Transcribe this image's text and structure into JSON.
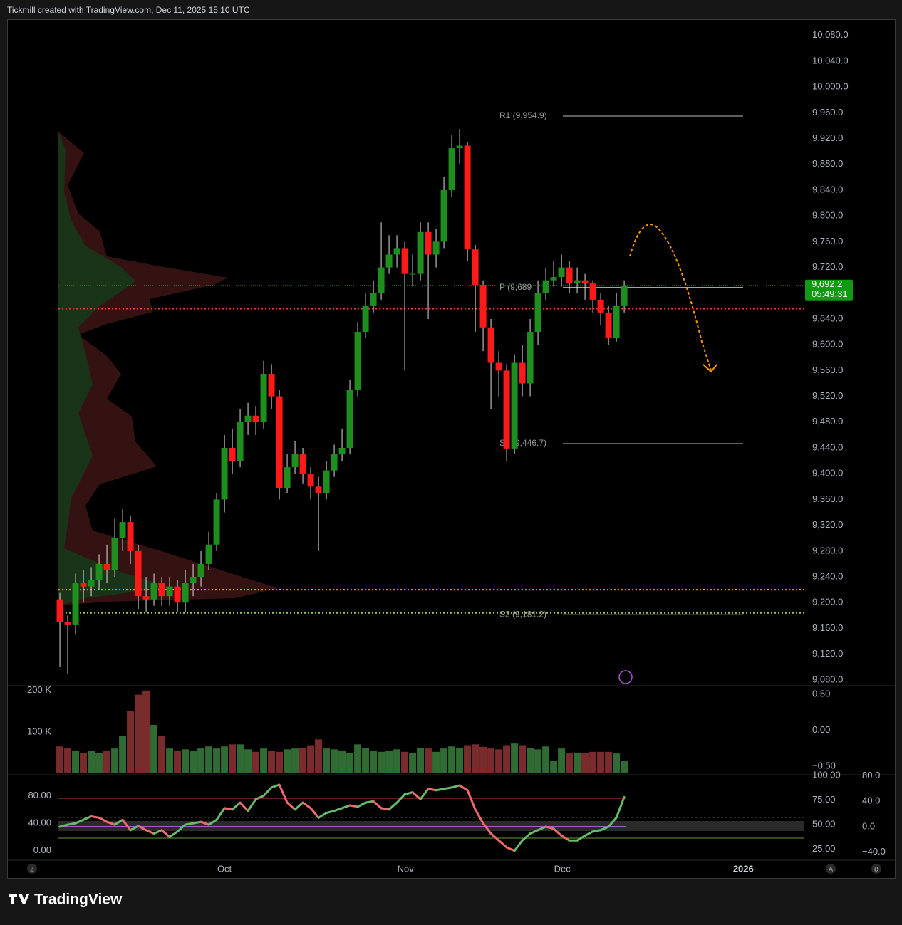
{
  "header": {
    "title": "Tickmill created with TradingView.com, Dec 11, 2025 15:10 UTC"
  },
  "footer": {
    "brand": "TradingView"
  },
  "chart_data": {
    "type": "candlestick",
    "up_color": "#1e8f1e",
    "down_color": "#ff1a1a",
    "xlim": [
      -0.55,
      94.9
    ],
    "xticks": [
      {
        "value": 21,
        "label": "Oct"
      },
      {
        "value": 44.1,
        "label": "Nov"
      },
      {
        "value": 64.1,
        "label": "Dec"
      },
      {
        "value": 87.2,
        "label": "2026"
      }
    ],
    "ylim": [
      9071,
      10104
    ],
    "yticks": [
      {
        "value": 10080,
        "label": "10,080.0"
      },
      {
        "value": 10040,
        "label": "10,040.0"
      },
      {
        "value": 10000,
        "label": "10,000.0"
      },
      {
        "value": 9960,
        "label": "9,960.0"
      },
      {
        "value": 9920,
        "label": "9,920.0"
      },
      {
        "value": 9880,
        "label": "9,880.0"
      },
      {
        "value": 9840,
        "label": "9,840.0"
      },
      {
        "value": 9800,
        "label": "9,800.0"
      },
      {
        "value": 9760,
        "label": "9,760.0"
      },
      {
        "value": 9720,
        "label": "9,720.0"
      },
      {
        "value": 9640,
        "label": "9,640.0"
      },
      {
        "value": 9600,
        "label": "9,600.0"
      },
      {
        "value": 9560,
        "label": "9,560.0"
      },
      {
        "value": 9520,
        "label": "9,520.0"
      },
      {
        "value": 9480,
        "label": "9,480.0"
      },
      {
        "value": 9440,
        "label": "9,440.0"
      },
      {
        "value": 9400,
        "label": "9,400.0"
      },
      {
        "value": 9360,
        "label": "9,360.0"
      },
      {
        "value": 9320,
        "label": "9,320.0"
      },
      {
        "value": 9280,
        "label": "9,280.0"
      },
      {
        "value": 9240,
        "label": "9,240.0"
      },
      {
        "value": 9200,
        "label": "9,200.0"
      },
      {
        "value": 9160,
        "label": "9,160.0"
      },
      {
        "value": 9120,
        "label": "9,120.0"
      },
      {
        "value": 9080,
        "label": "9,080.0"
      }
    ],
    "open": [
      9205,
      9170,
      9165,
      9230,
      9225,
      9235,
      9260,
      9250,
      9300,
      9325,
      9280,
      9210,
      9205,
      9230,
      9210,
      9225,
      9200,
      9230,
      9240,
      9260,
      9290,
      9360,
      9440,
      9420,
      9480,
      9490,
      9480,
      9555,
      9520,
      9378,
      9410,
      9430,
      9400,
      9380,
      9370,
      9405,
      9430,
      9440,
      9530,
      9620,
      9660,
      9680,
      9720,
      9740,
      9750,
      9710,
      9710,
      9775,
      9740,
      9760,
      9840,
      9905,
      9909,
      9748,
      9693,
      9627,
      9572,
      9560,
      9439,
      9572,
      9540,
      9620,
      9680,
      9700,
      9705,
      9720,
      9695,
      9700,
      9695,
      9670,
      9650,
      9610,
      9660
    ],
    "high": [
      9215,
      9180,
      9245,
      9250,
      9255,
      9275,
      9290,
      9330,
      9345,
      9335,
      9290,
      9240,
      9245,
      9240,
      9240,
      9235,
      9250,
      9260,
      9280,
      9310,
      9370,
      9460,
      9470,
      9500,
      9510,
      9505,
      9575,
      9570,
      9530,
      9430,
      9450,
      9440,
      9410,
      9395,
      9420,
      9445,
      9470,
      9545,
      9635,
      9680,
      9700,
      9790,
      9770,
      9770,
      9760,
      9740,
      9790,
      9790,
      9780,
      9860,
      9925,
      9935,
      9915,
      9755,
      9700,
      9640,
      9590,
      9570,
      9585,
      9600,
      9640,
      9700,
      9720,
      9730,
      9740,
      9730,
      9720,
      9710,
      9700,
      9680,
      9660,
      9680,
      9700
    ],
    "low": [
      9100,
      9090,
      9150,
      9200,
      9210,
      9220,
      9230,
      9240,
      9280,
      9260,
      9190,
      9185,
      9195,
      9195,
      9195,
      9185,
      9185,
      9210,
      9225,
      9250,
      9280,
      9340,
      9400,
      9410,
      9460,
      9460,
      9470,
      9500,
      9360,
      9370,
      9400,
      9385,
      9360,
      9280,
      9360,
      9395,
      9420,
      9430,
      9520,
      9610,
      9650,
      9670,
      9710,
      9720,
      9560,
      9690,
      9700,
      9640,
      9720,
      9750,
      9830,
      9880,
      9730,
      9620,
      9590,
      9500,
      9520,
      9420,
      9430,
      9520,
      9520,
      9600,
      9670,
      9690,
      9690,
      9680,
      9680,
      9670,
      9650,
      9630,
      9600,
      9605,
      9650
    ],
    "close": [
      9170,
      9165,
      9230,
      9225,
      9235,
      9260,
      9250,
      9300,
      9325,
      9280,
      9210,
      9205,
      9230,
      9210,
      9225,
      9200,
      9230,
      9240,
      9260,
      9290,
      9360,
      9440,
      9420,
      9480,
      9490,
      9480,
      9555,
      9520,
      9378,
      9410,
      9430,
      9400,
      9380,
      9370,
      9405,
      9430,
      9440,
      9530,
      9620,
      9660,
      9680,
      9720,
      9740,
      9750,
      9710,
      9710,
      9775,
      9740,
      9760,
      9840,
      9905,
      9909,
      9748,
      9693,
      9627,
      9572,
      9560,
      9439,
      9572,
      9540,
      9620,
      9680,
      9700,
      9705,
      9720,
      9695,
      9700,
      9695,
      9670,
      9650,
      9610,
      9660,
      9692.2
    ],
    "last_price_label": "9,692.2",
    "countdown": "05:49:31",
    "pivots": [
      {
        "label": "R1 (9,954.9)",
        "value": 9954.9
      },
      {
        "label": "P (9,689",
        "value": 9689
      },
      {
        "label": "S1 (9,446.7)",
        "value": 9446.7
      },
      {
        "label": "S2 (9,181.2)",
        "value": 9181.2
      }
    ],
    "hlines": [
      {
        "value": 9656,
        "color": "#ff3b30"
      },
      {
        "value": 9220,
        "color": "#ffa726"
      },
      {
        "value": 9184,
        "color": "#9ccc65"
      }
    ],
    "volume": {
      "ylim": [
        0,
        210
      ],
      "yticks": [
        {
          "value": 200,
          "label": "200 K"
        },
        {
          "value": 100,
          "label": "100 K"
        }
      ],
      "up_color": "#2f6b33",
      "down_color": "#7a2c2c",
      "values": [
        65,
        60,
        55,
        50,
        55,
        50,
        55,
        60,
        90,
        150,
        190,
        200,
        117,
        90,
        60,
        55,
        58,
        55,
        60,
        65,
        60,
        65,
        70,
        70,
        58,
        52,
        60,
        55,
        52,
        58,
        60,
        62,
        68,
        82,
        60,
        58,
        55,
        50,
        70,
        62,
        55,
        52,
        55,
        58,
        52,
        50,
        62,
        60,
        52,
        60,
        65,
        62,
        68,
        70,
        64,
        60,
        58,
        68,
        72,
        68,
        62,
        58,
        65,
        30,
        60,
        48,
        50,
        50,
        52,
        52,
        52,
        48,
        30
      ],
      "y2lim": [
        -0.62,
        0.61
      ],
      "y2ticks": [
        {
          "value": 0.5,
          "label": "0.50"
        },
        {
          "value": 0,
          "label": "0.00"
        },
        {
          "value": -0.5,
          "label": "−0.50"
        }
      ]
    },
    "oscillator": {
      "ylim": [
        -13.7,
        110.5
      ],
      "yticks": [
        {
          "value": 80,
          "label": "80.00"
        },
        {
          "value": 40,
          "label": "40.00"
        },
        {
          "value": 0,
          "label": "0.00"
        }
      ],
      "up_color": "#66bb6a",
      "down_color": "#ef6a6a",
      "values": [
        35,
        38,
        40,
        45,
        50,
        48,
        42,
        38,
        45,
        30,
        36,
        30,
        25,
        30,
        20,
        28,
        38,
        40,
        42,
        38,
        45,
        62,
        60,
        70,
        58,
        75,
        80,
        92,
        96,
        70,
        60,
        70,
        62,
        48,
        55,
        58,
        62,
        66,
        64,
        70,
        72,
        62,
        60,
        70,
        82,
        85,
        75,
        90,
        88,
        90,
        92,
        95,
        88,
        60,
        40,
        25,
        15,
        5,
        0,
        15,
        25,
        30,
        35,
        32,
        22,
        15,
        15,
        22,
        28,
        30,
        35,
        48,
        78
      ],
      "y2lim": [
        14,
        100.7
      ],
      "y2ticks": [
        {
          "value": 100,
          "label": "100.00"
        },
        {
          "value": 75,
          "label": "75.00"
        },
        {
          "value": 50,
          "label": "50.00"
        },
        {
          "value": 25,
          "label": "25.00"
        }
      ],
      "y3lim": [
        -52.7,
        81.8
      ],
      "y3ticks": [
        {
          "value": 80,
          "label": "80.0"
        },
        {
          "value": 40,
          "label": "40.0"
        },
        {
          "value": 0,
          "label": "0.0"
        },
        {
          "value": -40,
          "label": "−40.0"
        }
      ]
    },
    "axis_buttons": [
      "Z",
      "A",
      "B"
    ]
  }
}
